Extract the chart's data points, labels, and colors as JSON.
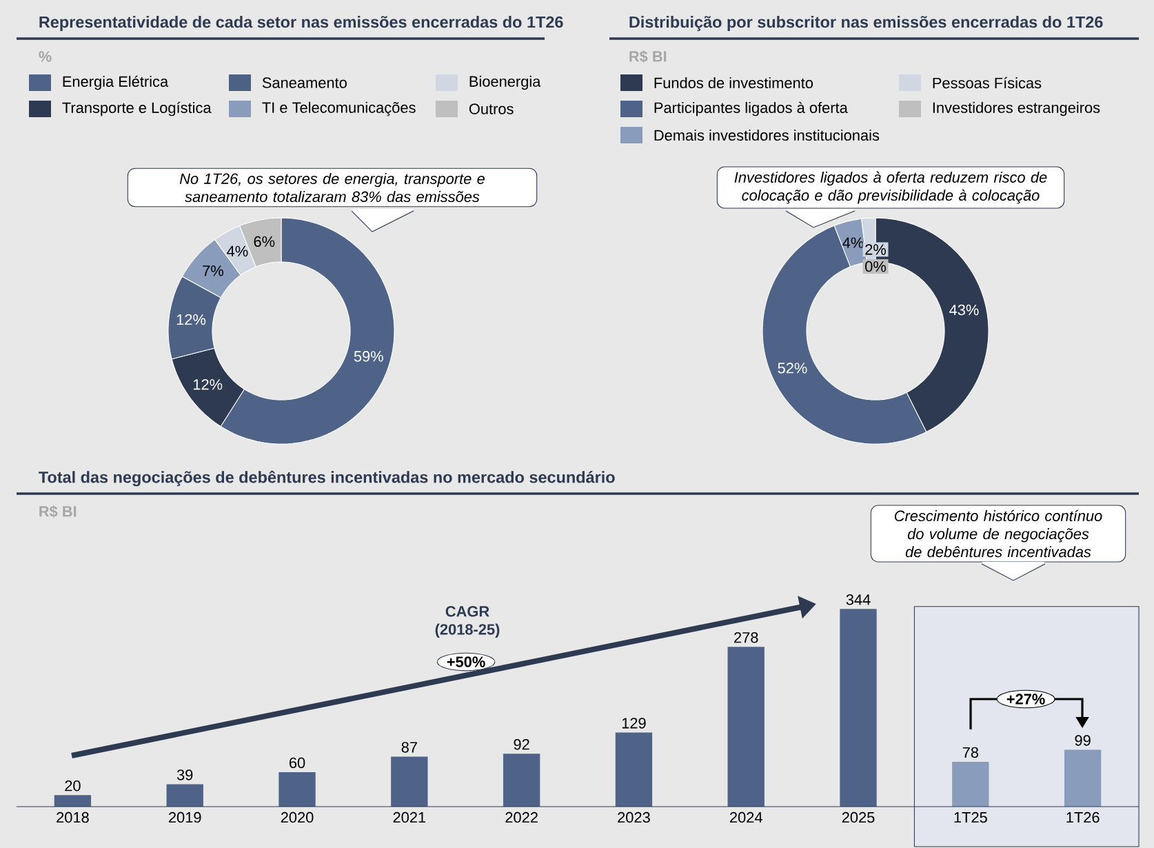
{
  "chart_data": [
    {
      "type": "donut",
      "title": "Representatividade de cada setor nas emissões encerradas do 1T26",
      "subtitle": "%",
      "categories": [
        "Energia Elétrica",
        "Transporte e Logística",
        "Saneamento",
        "TI e Telecomunicações",
        "Bioenergia",
        "Outros"
      ],
      "values": [
        59,
        12,
        12,
        7,
        4,
        6
      ],
      "colors": [
        "#4f6388",
        "#2d3a52",
        "#4d6185",
        "#8a9cbb",
        "#d0d7e3",
        "#bfbfbf"
      ],
      "value_labels": [
        "59%",
        "12%",
        "12%",
        "7%",
        "4%",
        "6%"
      ],
      "legend": "top",
      "annotations": [
        "No 1T26, os setores de energia, transporte e saneamento totalizaram 83% das emissões"
      ]
    },
    {
      "type": "donut",
      "title": "Distribuição por subscritor nas emissões encerradas do 1T26",
      "subtitle": "R$ BI",
      "categories": [
        "Fundos de investimento",
        "Participantes ligados à oferta",
        "Demais investidores institucionais",
        "Pessoas Físicas",
        "Investidores estrangeiros"
      ],
      "values": [
        43,
        52,
        4,
        2,
        0
      ],
      "colors": [
        "#2d3a52",
        "#4f6388",
        "#8a9cbb",
        "#d0d7e3",
        "#bfbfbf"
      ],
      "value_labels": [
        "43%",
        "52%",
        "4%",
        "2%",
        "0%"
      ],
      "legend": "top",
      "annotations": [
        "Investidores ligados à oferta reduzem risco de colocação e dão previsibilidade à colocação"
      ]
    },
    {
      "type": "bar",
      "title": "Total das negociações de debêntures incentivadas no mercado secundário",
      "subtitle": "R$ BI",
      "categories": [
        "2018",
        "2019",
        "2020",
        "2021",
        "2022",
        "2023",
        "2024",
        "2025",
        "1T25",
        "1T26"
      ],
      "values": [
        20,
        39,
        60,
        87,
        92,
        129,
        278,
        344,
        78,
        99
      ],
      "colors": [
        "#4f6388",
        "#4f6388",
        "#4f6388",
        "#4f6388",
        "#4f6388",
        "#4f6388",
        "#4f6388",
        "#4f6388",
        "#8a9cbb",
        "#8a9cbb"
      ],
      "data_labels": true,
      "bands": [
        {
          "axis": "x",
          "from": "1T25",
          "to": "1T26",
          "color": "#e3e6ee"
        }
      ],
      "annotations": [
        "CAGR (2018-25)",
        "+50%",
        "Crescimento histórico contínuo do volume de negociações de debêntures incentivadas",
        "+27%"
      ]
    }
  ]
}
